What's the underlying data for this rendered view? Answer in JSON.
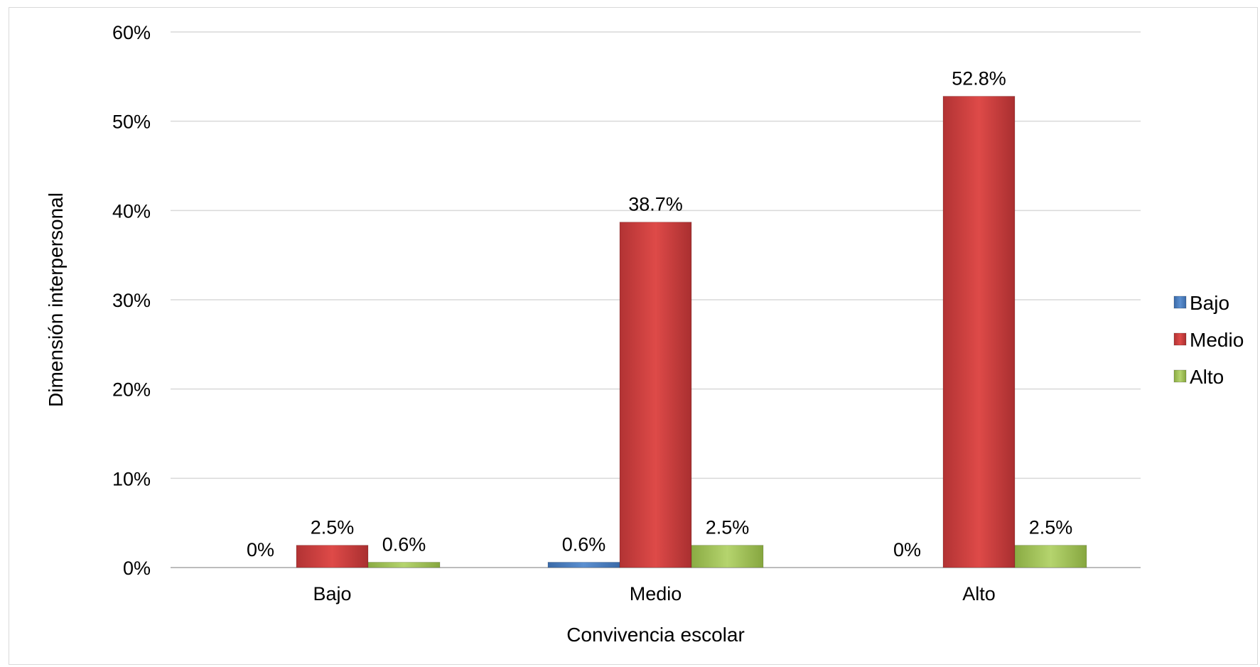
{
  "chart_data": {
    "type": "bar",
    "title": "",
    "xlabel": "Convivencia escolar",
    "ylabel": "Dimensión interpersonal",
    "categories": [
      "Bajo",
      "Medio",
      "Alto"
    ],
    "series": [
      {
        "name": "Bajo",
        "values": [
          0,
          0.6,
          0
        ],
        "labels": [
          "0%",
          "0.6%",
          "0%"
        ],
        "color": "#4a7ebb"
      },
      {
        "name": "Medio",
        "values": [
          2.5,
          38.7,
          52.8
        ],
        "labels": [
          "2.5%",
          "38.7%",
          "52.8%"
        ],
        "color": "#c0393b"
      },
      {
        "name": "Alto",
        "values": [
          0.6,
          2.5,
          2.5
        ],
        "labels": [
          "0.6%",
          "2.5%",
          "2.5%"
        ],
        "color": "#9bbb59"
      }
    ],
    "ylim": [
      0,
      60
    ],
    "yticks": [
      0,
      10,
      20,
      30,
      40,
      50,
      60
    ],
    "ytick_labels": [
      "0%",
      "10%",
      "20%",
      "30%",
      "40%",
      "50%",
      "60%"
    ],
    "grid": true,
    "legend_position": "right"
  }
}
